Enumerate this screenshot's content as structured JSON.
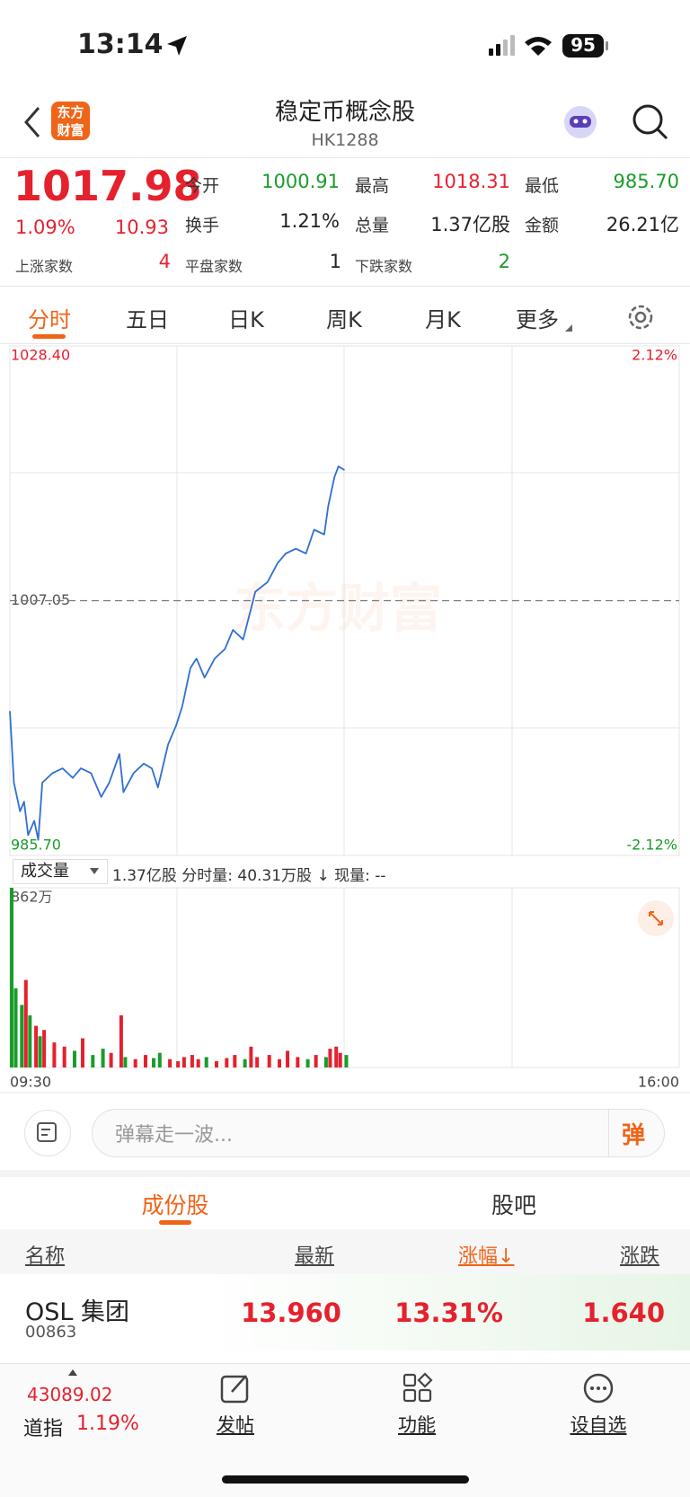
{
  "status_bar": {
    "time": "13:14",
    "battery": "95"
  },
  "header": {
    "logo": "东方财富",
    "title": "稳定币概念股",
    "code": "HK1288"
  },
  "quote": {
    "price": "1017.98",
    "change_pct": "1.09%",
    "change": "10.93",
    "stats": [
      [
        "今开",
        "1000.91"
      ],
      [
        "最高",
        "1018.31"
      ],
      [
        "最低",
        "985.70"
      ],
      [
        "换手",
        "1.21%"
      ],
      [
        "总量",
        "1.37亿股"
      ],
      [
        "金额",
        "26.21亿"
      ]
    ],
    "breadth": [
      [
        "上涨家数",
        "4"
      ],
      [
        "平盘家数",
        "1"
      ],
      [
        "下跌家数",
        "2"
      ]
    ]
  },
  "tabs": [
    "分时",
    "五日",
    "日K",
    "周K",
    "月K",
    "更多"
  ],
  "chart_data": [
    {
      "type": "line",
      "color": "#2f6fd1",
      "x": [
        0,
        2,
        5,
        7,
        9,
        12,
        14,
        16,
        21,
        26,
        31,
        35,
        40,
        45,
        49,
        54,
        56,
        61,
        66,
        70,
        73,
        78,
        82,
        85,
        89,
        92,
        96,
        101,
        106,
        110,
        115,
        118,
        121,
        127,
        132,
        136,
        141,
        146,
        150,
        155,
        157,
        160,
        162,
        165
      ],
      "values": [
        997.8,
        991.8,
        989.4,
        990.2,
        987.4,
        988.6,
        987.0,
        991.8,
        992.6,
        993.0,
        992.2,
        993.0,
        992.6,
        990.6,
        991.8,
        994.2,
        991.0,
        992.6,
        993.4,
        993.0,
        991.4,
        995.0,
        996.6,
        998.2,
        1001.4,
        1002.2,
        1000.6,
        1002.2,
        1003.0,
        1004.6,
        1003.8,
        1005.8,
        1007.8,
        1008.6,
        1010.2,
        1011.0,
        1011.4,
        1011.0,
        1013.0,
        1012.6,
        1015.0,
        1017.4,
        1018.3,
        1018.0
      ],
      "xlim": [
        0,
        330
      ],
      "ylim": [
        985.7,
        1028.4
      ],
      "yticks": [
        {
          "value": 1028.4,
          "label": "1028.40"
        },
        1007.05,
        {
          "value": 985.7,
          "label": "985.70"
        }
      ],
      "y2lim": [
        -2.12,
        2.12
      ],
      "y2ticks": [
        {
          "value": 2.12,
          "label": "2.12%"
        },
        {
          "value": -2.12,
          "label": "-2.12%"
        }
      ]
    },
    {
      "type": "bar",
      "up_color": "#e5212d",
      "down_color": "#1a9c2a",
      "x": [
        0,
        2,
        5,
        7,
        9,
        12,
        14,
        16,
        21,
        26,
        31,
        35,
        40,
        45,
        49,
        54,
        56,
        61,
        66,
        70,
        73,
        78,
        82,
        85,
        89,
        92,
        96,
        101,
        106,
        110,
        115,
        118,
        121,
        127,
        132,
        136,
        141,
        146,
        150,
        155,
        157,
        160,
        162,
        165
      ],
      "values": [
        862,
        380,
        300,
        420,
        250,
        200,
        150,
        180,
        120,
        100,
        80,
        140,
        60,
        90,
        70,
        250,
        50,
        40,
        60,
        45,
        70,
        40,
        30,
        50,
        60,
        40,
        50,
        30,
        45,
        60,
        40,
        100,
        50,
        60,
        40,
        80,
        50,
        40,
        60,
        50,
        90,
        100,
        70,
        60
      ],
      "xlim": [
        0,
        330
      ],
      "xticks": [
        {
          "value": 0,
          "label": "09:30"
        },
        {
          "value": 330,
          "label": "16:00"
        }
      ],
      "ylim": [
        0,
        862
      ],
      "yticks": [
        {
          "value": 862,
          "label": "862万"
        }
      ]
    }
  ],
  "volume_header": {
    "selector": "成交量",
    "info": "1.37亿股 分时量: 40.31万股 ↓ 现量: --"
  },
  "watermark": "东方财富",
  "danmaku": {
    "placeholder": "弹幕走一波...",
    "button": "弹"
  },
  "section_tabs": [
    "成份股",
    "股吧"
  ],
  "table": {
    "headers": [
      "名称",
      "最新",
      "涨幅↓",
      "涨跌"
    ],
    "rows": [
      {
        "name": "OSL 集团",
        "code": "00863",
        "cells": [
          "13.960",
          "13.31%",
          "1.640"
        ]
      }
    ]
  },
  "footer": {
    "index_value": "43089.02",
    "index_name": "道指",
    "index_change": "1.19%",
    "actions": [
      "发帖",
      "功能",
      "设自选"
    ]
  }
}
